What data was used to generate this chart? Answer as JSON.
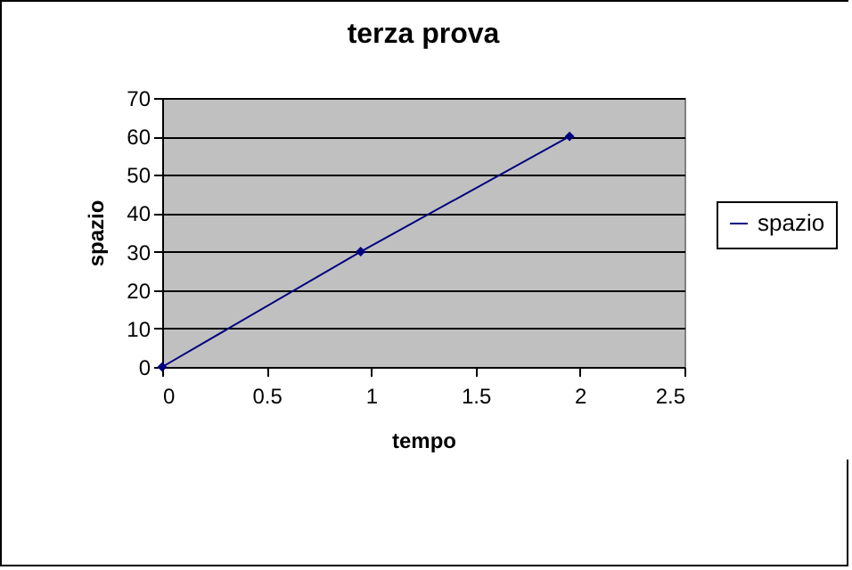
{
  "chart_data": {
    "type": "line",
    "title": "terza prova",
    "xlabel": "tempo",
    "ylabel": "spazio",
    "x": [
      0,
      0.95,
      1.95
    ],
    "series": [
      {
        "name": "spazio",
        "color": "#000080",
        "values": [
          0,
          30,
          60
        ]
      }
    ],
    "xlim": [
      0,
      2.5
    ],
    "xticks": [
      0,
      0.5,
      1,
      1.5,
      2,
      2.5
    ],
    "ylim": [
      0,
      70
    ],
    "yticks": [
      0,
      10,
      20,
      30,
      40,
      50,
      60,
      70
    ],
    "grid": "y",
    "legend": "right",
    "marker": "diamond"
  }
}
